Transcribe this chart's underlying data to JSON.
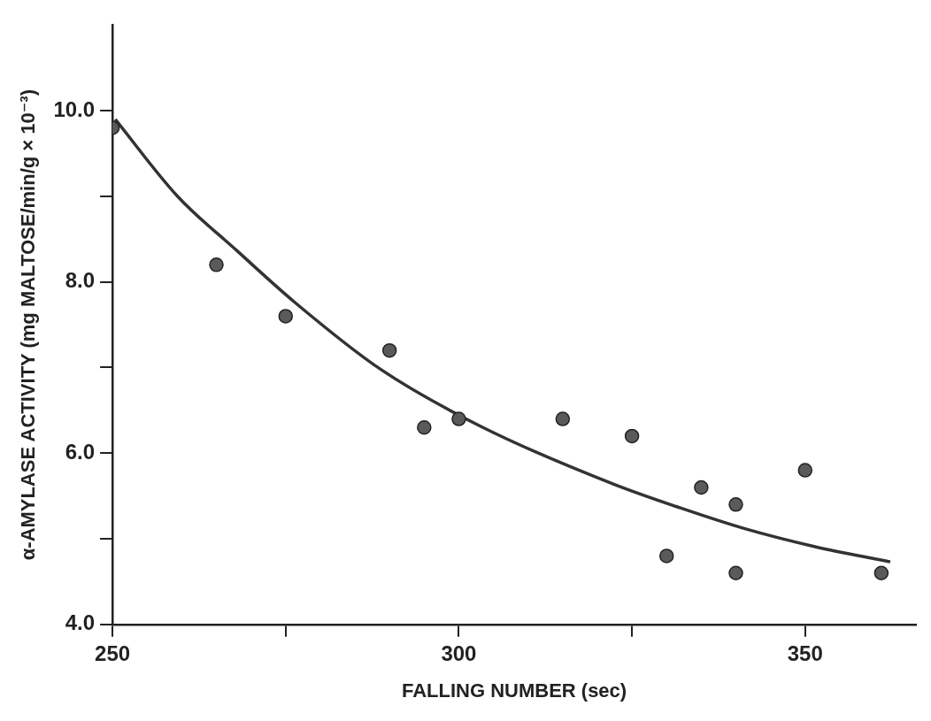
{
  "chart_data": {
    "type": "scatter",
    "xlabel": "FALLING NUMBER (sec)",
    "ylabel": "α-AMYLASE ACTIVITY (mg MALTOSE/min/g × 10⁻³)",
    "xlim": [
      250,
      366
    ],
    "ylim": [
      4,
      11
    ],
    "xticks": [
      250,
      {
        "value": 275,
        "label": null
      },
      300,
      {
        "value": 325,
        "label": null
      },
      350
    ],
    "yticks": [
      {
        "value": 4,
        "label": "4.0"
      },
      {
        "value": 5,
        "label": null
      },
      {
        "value": 6,
        "label": "6.0"
      },
      {
        "value": 7,
        "label": null
      },
      {
        "value": 8,
        "label": "8.0"
      },
      {
        "value": 9,
        "label": null
      },
      {
        "value": 10,
        "label": "10.0"
      }
    ],
    "grid": false,
    "legend": false,
    "marker": "circle",
    "series": [
      {
        "color": "#5a5a5a",
        "x": [
          250,
          265,
          275,
          290,
          295,
          300,
          315,
          325,
          330,
          335,
          340,
          340,
          350,
          361
        ],
        "values": [
          9.8,
          8.2,
          7.6,
          7.2,
          6.3,
          6.4,
          6.4,
          6.2,
          4.8,
          5.6,
          5.4,
          4.6,
          5.8,
          4.6
        ]
      },
      {
        "type": "line",
        "color": "#333333",
        "marker": "none",
        "x": [
          250.4,
          259.4,
          267.9,
          276.2,
          288.7,
          303.5,
          322.3,
          332,
          341.2,
          351.3,
          362.3
        ],
        "values": [
          9.9,
          9.0,
          8.37,
          7.77,
          6.98,
          6.3,
          5.64,
          5.36,
          5.12,
          4.91,
          4.73
        ]
      }
    ]
  }
}
